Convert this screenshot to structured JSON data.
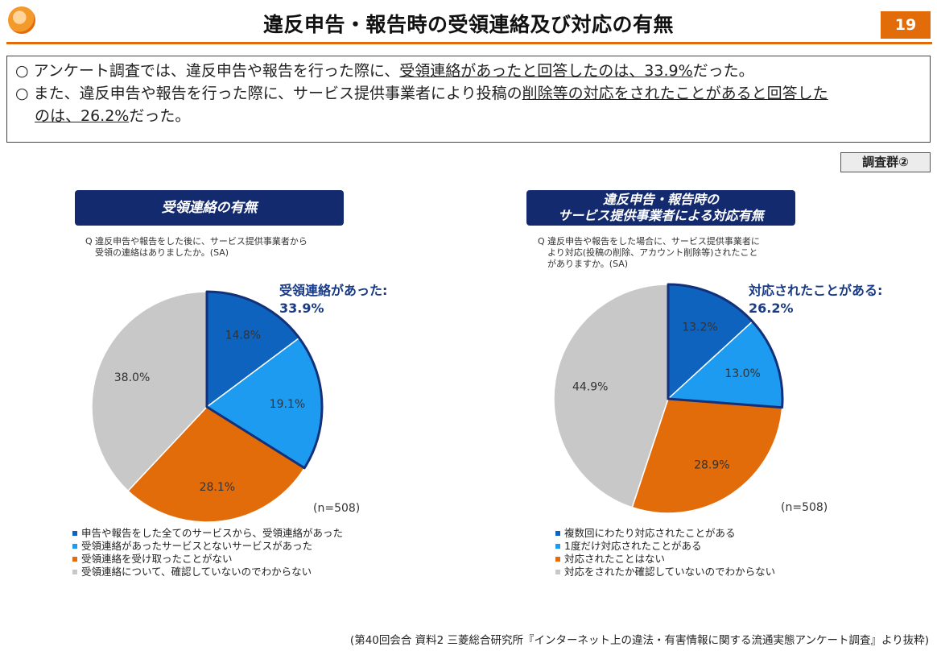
{
  "header": {
    "title": "違反申告・報告時の受領連絡及び対応の有無",
    "page_number": "19"
  },
  "summary": {
    "line1_prefix": "○ アンケート調査では、違反申告や報告を行った際に、",
    "line1_underlined": "受領連絡があったと回答したのは、33.9%",
    "line1_suffix": "だった。",
    "line2_prefix": "○ また、違反申告や報告を行った際に、サービス提供事業者により投稿の",
    "line2_underlined": "削除等の対応をされたことがあると回答した",
    "line3_underlined": "のは、26.2%",
    "line3_suffix": "だった。"
  },
  "badge": "調査群②",
  "colors": {
    "dark_blue": "#0d63bd",
    "light_blue": "#1d9bf0",
    "orange": "#e36c0a",
    "gray": "#c8c8c8",
    "navy": "#142a6e",
    "outline": "#13317a"
  },
  "chart_data": [
    {
      "type": "pie",
      "title": "受領連絡の有無",
      "question": [
        "Q 違反申告や報告をした後に、サービス提供事業者から",
        "受領の連絡はありましたか。(SA)"
      ],
      "callout_label": "受領連絡があった:",
      "callout_value": "33.9%",
      "n_label": "(n=508)",
      "slices": [
        {
          "label": "申告や報告をした全てのサービスから、受領連絡があった",
          "value": 14.8,
          "display": "14.8%",
          "color": "#0d63bd"
        },
        {
          "label": "受領連絡があったサービスとないサービスがあった",
          "value": 19.1,
          "display": "19.1%",
          "color": "#1d9bf0"
        },
        {
          "label": "受領連絡を受け取ったことがない",
          "value": 28.1,
          "display": "28.1%",
          "color": "#e36c0a"
        },
        {
          "label": "受領連絡について、確認していないのでわからない",
          "value": 38.0,
          "display": "38.0%",
          "color": "#c8c8c8"
        }
      ]
    },
    {
      "type": "pie",
      "title_line1": "違反申告・報告時の",
      "title_line2": "サービス提供事業者による対応有無",
      "question": [
        "Q 違反申告や報告をした場合に、サービス提供事業者に",
        "より対応(投稿の削除、アカウント削除等)されたこと",
        "がありますか。(SA)"
      ],
      "callout_label": "対応されたことがある:",
      "callout_value": "26.2%",
      "n_label": "(n=508)",
      "slices": [
        {
          "label": "複数回にわたり対応されたことがある",
          "value": 13.2,
          "display": "13.2%",
          "color": "#0d63bd"
        },
        {
          "label": "1度だけ対応されたことがある",
          "value": 13.0,
          "display": "13.0%",
          "color": "#1d9bf0"
        },
        {
          "label": "対応されたことはない",
          "value": 28.9,
          "display": "28.9%",
          "color": "#e36c0a"
        },
        {
          "label": "対応をされたか確認していないのでわからない",
          "value": 44.9,
          "display": "44.9%",
          "color": "#c8c8c8"
        }
      ]
    }
  ],
  "source": "(第40回会合 資料2 三菱総合研究所『インターネット上の違法・有害情報に関する流通実態アンケート調査』より抜粋)"
}
